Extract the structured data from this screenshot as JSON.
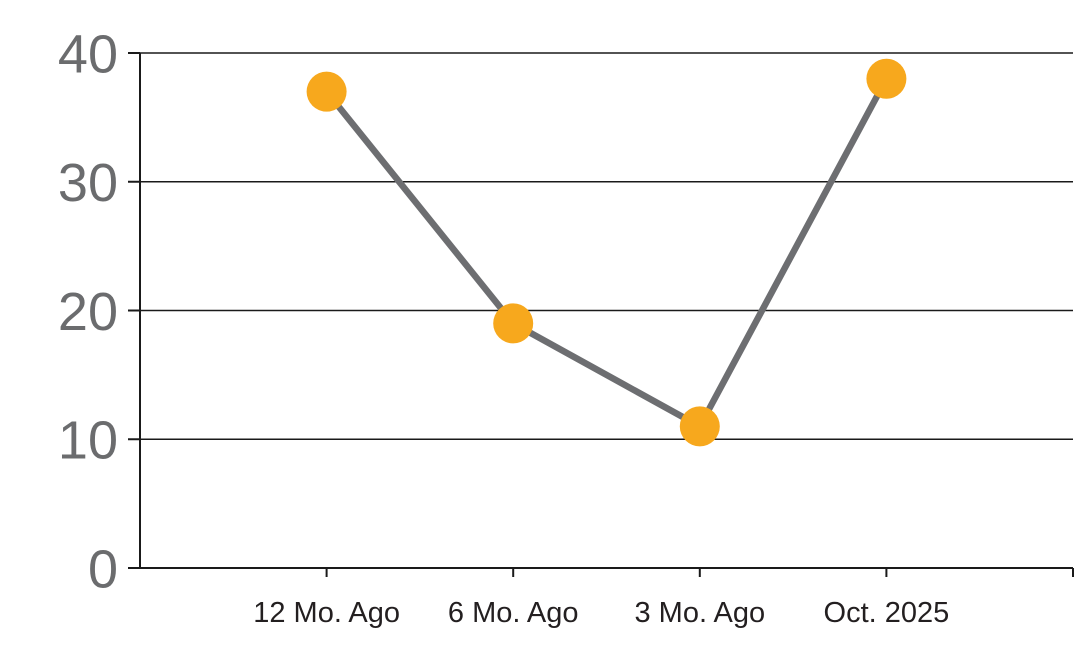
{
  "chart_data": {
    "type": "line",
    "title": "",
    "xlabel": "",
    "ylabel": "",
    "categories": [
      "12 Mo. Ago",
      "6 Mo. Ago",
      "3 Mo. Ago",
      "Oct. 2025"
    ],
    "series": [
      {
        "name": "values",
        "values": [
          37,
          19,
          11,
          38
        ]
      }
    ],
    "ylim": [
      0,
      40
    ],
    "yticks": [
      0,
      10,
      20,
      30,
      40
    ],
    "grid": true,
    "legend": "none",
    "colors": {
      "marker": "#F7A81D",
      "line": "#6D6E71",
      "axis": "#1A1A1A",
      "gridline": "#1A1A1A",
      "y_tick_label": "#6B6C6E",
      "x_tick_label": "#231F20",
      "background": "#FFFFFF"
    }
  }
}
